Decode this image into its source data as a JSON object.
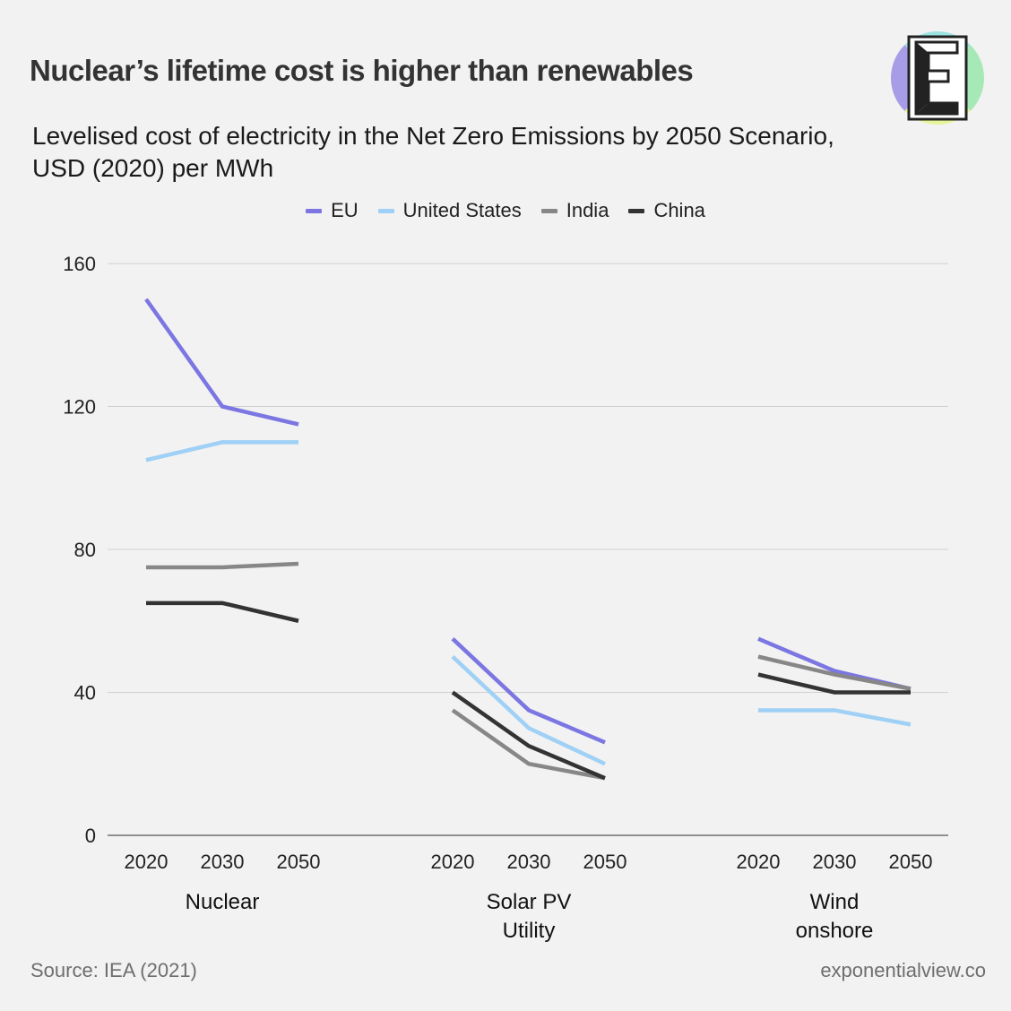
{
  "header": {
    "title": "Nuclear’s lifetime cost is higher than renewables",
    "subtitle_line1": "Levelised cost of electricity in the Net Zero Emissions by 2050 Scenario,",
    "subtitle_line2": "USD (2020) per MWh"
  },
  "logo": {
    "letter": "E",
    "icon": "exponential-view-logo"
  },
  "footer": {
    "source": "Source: IEA (2021)",
    "site": "exponentialview.co"
  },
  "chart_data": {
    "type": "line",
    "legend_position": "top-center",
    "grid": true,
    "ylim": [
      0,
      160
    ],
    "yticks": [
      "0",
      "40",
      "80",
      "120",
      "160"
    ],
    "groups": [
      {
        "label_lines": [
          "Nuclear"
        ],
        "x": [
          "2020",
          "2030",
          "2050"
        ],
        "series": [
          {
            "name": "EU",
            "values": [
              150,
              120,
              115
            ]
          },
          {
            "name": "United States",
            "values": [
              105,
              110,
              110
            ]
          },
          {
            "name": "India",
            "values": [
              75,
              75,
              76
            ]
          },
          {
            "name": "China",
            "values": [
              65,
              65,
              60
            ]
          }
        ]
      },
      {
        "label_lines": [
          "Solar PV",
          "Utility"
        ],
        "x": [
          "2020",
          "2030",
          "2050"
        ],
        "series": [
          {
            "name": "EU",
            "values": [
              55,
              35,
              26
            ]
          },
          {
            "name": "United States",
            "values": [
              50,
              30,
              20
            ]
          },
          {
            "name": "India",
            "values": [
              35,
              20,
              16
            ]
          },
          {
            "name": "China",
            "values": [
              40,
              25,
              16
            ]
          }
        ]
      },
      {
        "label_lines": [
          "Wind",
          "onshore"
        ],
        "x": [
          "2020",
          "2030",
          "2050"
        ],
        "series": [
          {
            "name": "EU",
            "values": [
              55,
              46,
              41
            ]
          },
          {
            "name": "United States",
            "values": [
              35,
              35,
              31
            ]
          },
          {
            "name": "India",
            "values": [
              50,
              45,
              41
            ]
          },
          {
            "name": "China",
            "values": [
              45,
              40,
              40
            ]
          }
        ]
      }
    ],
    "legend": [
      {
        "name": "EU",
        "color": "#7b76e2"
      },
      {
        "name": "United States",
        "color": "#9fd0f5"
      },
      {
        "name": "India",
        "color": "#878787"
      },
      {
        "name": "China",
        "color": "#333333"
      }
    ]
  }
}
